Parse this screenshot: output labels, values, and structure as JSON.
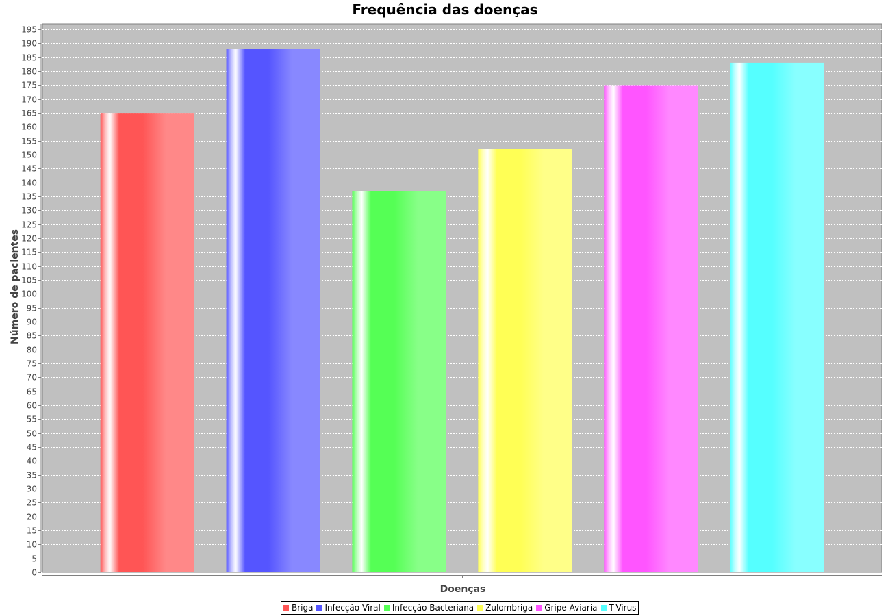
{
  "chart_data": {
    "type": "bar",
    "title": "Frequência das doenças",
    "xlabel": "Doenças",
    "ylabel": "Número de pacientes",
    "ylim": [
      0,
      197
    ],
    "ytick_step": 5,
    "grid": true,
    "legend_position": "bottom",
    "series": [
      {
        "name": "Briga",
        "value": 165,
        "color": "#ff5555"
      },
      {
        "name": "Infecção Viral",
        "value": 188,
        "color": "#5555ff"
      },
      {
        "name": "Infecção Bacteriana",
        "value": 137,
        "color": "#55ff55"
      },
      {
        "name": "Zulombriga",
        "value": 152,
        "color": "#ffff55"
      },
      {
        "name": "Gripe Aviaria",
        "value": 175,
        "color": "#ff55ff"
      },
      {
        "name": "T-Virus",
        "value": 183,
        "color": "#55ffff"
      }
    ]
  }
}
